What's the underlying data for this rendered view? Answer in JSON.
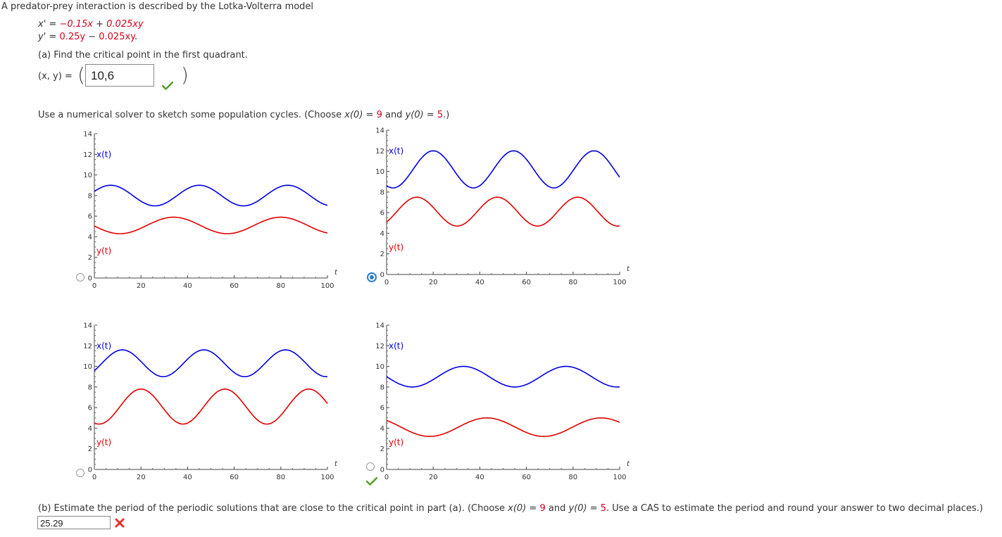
{
  "intro": "A predator-prey interaction is described by the Lotka-Volterra model",
  "equations": {
    "x_prime": {
      "lhs": "x' = ",
      "coef1": "−0.15x",
      "plus": " + ",
      "coef2": "0.025xy"
    },
    "y_prime": {
      "lhs": "y' = ",
      "coef1": "0.25y",
      "minus": " − ",
      "coef2": "0.025xy",
      "end": "."
    }
  },
  "part_a": {
    "question": "(a) Find the critical point in the first quadrant.",
    "label": "(x, y) = ",
    "answer": "10,6",
    "status": "correct"
  },
  "instruction": {
    "prefix": "Use a numerical solver to sketch some population cycles. (Choose ",
    "x0": "x(0)",
    "eq1": " = ",
    "x0_val": "9",
    "and": " and ",
    "y0": "y(0)",
    "eq2": " = ",
    "y0_val": "5",
    "suffix": ".)"
  },
  "options": [
    {
      "id": "option-1",
      "selected": false,
      "correct_mark": false
    },
    {
      "id": "option-2",
      "selected": true,
      "correct_mark": false
    },
    {
      "id": "option-3",
      "selected": false,
      "correct_mark": false
    },
    {
      "id": "option-4",
      "selected": false,
      "correct_mark": true
    }
  ],
  "part_b": {
    "prefix": "(b) Estimate the period of the periodic solutions that are close to the critical point in part (a). (Choose ",
    "x0": "x(0)",
    "eq1": " = ",
    "x0_val": "9",
    "and": " and ",
    "y0": "y(0)",
    "eq2": " = ",
    "y0_val": "5",
    "suffix": ". Use a CAS to estimate the period and round your answer to two decimal places.)",
    "answer": "25.29",
    "status": "incorrect"
  },
  "colors": {
    "x_series": "#0000dd",
    "y_series": "#dd0000",
    "accent": "#2a7bd0",
    "check": "#5aa02c",
    "cross": "#e03030"
  },
  "chart_data": [
    {
      "type": "line",
      "xlabel": "t",
      "xlim": [
        0,
        100
      ],
      "ylim": [
        0,
        14
      ],
      "xticks": [
        0,
        20,
        40,
        60,
        80,
        100
      ],
      "yticks": [
        0,
        2,
        4,
        6,
        8,
        10,
        12,
        14
      ],
      "series": [
        {
          "name": "x(t)",
          "model": {
            "center": 8.0,
            "amp": 1.0,
            "period": 38,
            "phase_peak": 45
          }
        },
        {
          "name": "y(t)",
          "model": {
            "center": 5.1,
            "amp": 0.8,
            "period": 46,
            "phase_peak": 34
          }
        }
      ]
    },
    {
      "type": "line",
      "xlabel": "t",
      "xlim": [
        0,
        100
      ],
      "ylim": [
        0,
        14
      ],
      "xticks": [
        0,
        20,
        40,
        60,
        80,
        100
      ],
      "yticks": [
        0,
        2,
        4,
        6,
        8,
        10,
        12,
        14
      ],
      "series": [
        {
          "name": "x(t)",
          "model": {
            "center": 10.2,
            "amp": 1.8,
            "period": 34.5,
            "phase_peak": 20
          }
        },
        {
          "name": "y(t)",
          "model": {
            "center": 6.1,
            "amp": 1.4,
            "period": 34.5,
            "phase_peak": 13
          }
        }
      ]
    },
    {
      "type": "line",
      "xlabel": "t",
      "xlim": [
        0,
        100
      ],
      "ylim": [
        0,
        14
      ],
      "xticks": [
        0,
        20,
        40,
        60,
        80,
        100
      ],
      "yticks": [
        0,
        2,
        4,
        6,
        8,
        10,
        12,
        14
      ],
      "series": [
        {
          "name": "x(t)",
          "model": {
            "center": 10.3,
            "amp": 1.3,
            "period": 35,
            "phase_peak": 12
          }
        },
        {
          "name": "y(t)",
          "model": {
            "center": 6.1,
            "amp": 1.7,
            "period": 36,
            "phase_peak": 20
          }
        }
      ]
    },
    {
      "type": "line",
      "xlabel": "t",
      "xlim": [
        0,
        100
      ],
      "ylim": [
        0,
        14
      ],
      "xticks": [
        0,
        20,
        40,
        60,
        80,
        100
      ],
      "yticks": [
        0,
        2,
        4,
        6,
        8,
        10,
        12,
        14
      ],
      "series": [
        {
          "name": "x(t)",
          "model": {
            "center": 9.0,
            "amp": 1.0,
            "period": 44,
            "phase_peak": 33
          }
        },
        {
          "name": "y(t)",
          "model": {
            "center": 4.1,
            "amp": 0.9,
            "period": 49,
            "phase_peak": 43
          }
        }
      ]
    }
  ]
}
